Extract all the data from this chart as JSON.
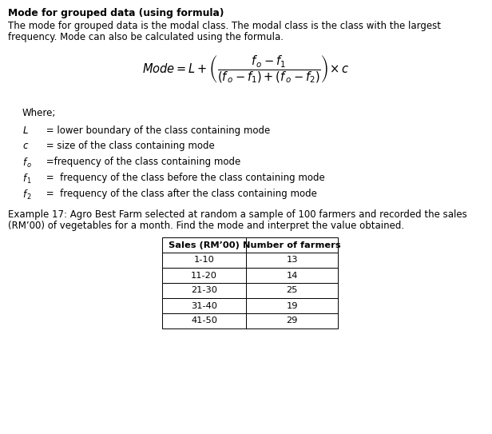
{
  "title": "Mode for grouped data (using formula)",
  "intro_line1": "The mode for grouped data is the modal class. The modal class is the class with the largest",
  "intro_line2": "frequency. Mode can also be calculated using the formula.",
  "where_label": "Where;",
  "example_line1": "Example 17: Agro Best Farm selected at random a sample of 100 farmers and recorded the sales",
  "example_line2": "(RM’00) of vegetables for a month. Find the mode and interpret the value obtained.",
  "table_headers": [
    "Sales (RM’00)",
    "Number of farmers"
  ],
  "table_rows": [
    [
      "1-10",
      "13"
    ],
    [
      "11-20",
      "14"
    ],
    [
      "21-30",
      "25"
    ],
    [
      "31-40",
      "19"
    ],
    [
      "41-50",
      "29"
    ]
  ],
  "bg_color": "#ffffff",
  "text_color": "#000000"
}
